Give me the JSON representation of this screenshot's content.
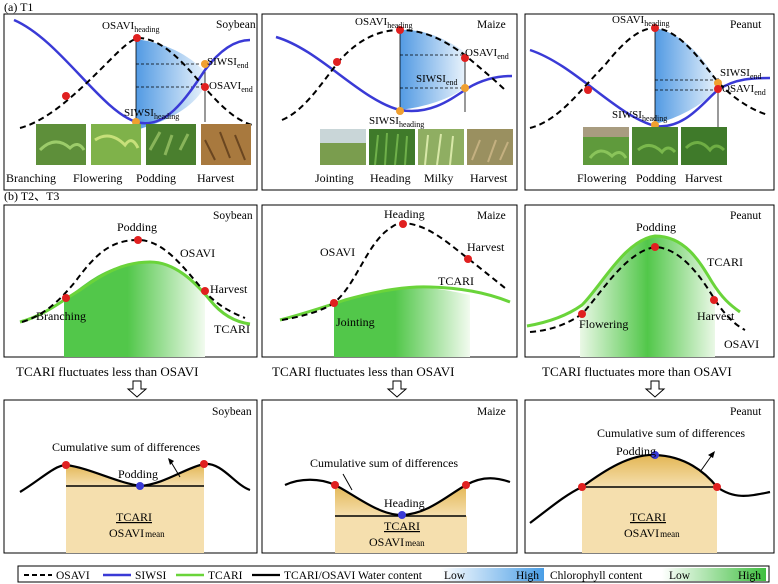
{
  "figure": {
    "section_a": "(a) T1",
    "section_b": "(b) T2、T3"
  },
  "t1": {
    "soybean": {
      "crop": "Soybean",
      "osavi_heading": "OSAVI",
      "osavi_heading_sub": "heading",
      "siwsi_end": "SIWSI",
      "siwsi_end_sub": "end",
      "osavi_end": "OSAVI",
      "osavi_end_sub": "end",
      "siwsi_heading": "SIWSI",
      "siwsi_heading_sub": "heading",
      "stages": [
        "Branching",
        "Flowering",
        "Podding",
        "Harvest"
      ]
    },
    "maize": {
      "crop": "Maize",
      "osavi_heading": "OSAVI",
      "osavi_heading_sub": "heading",
      "osavi_end": "OSAVI",
      "osavi_end_sub": "end",
      "siwsi_end": "SIWSI",
      "siwsi_end_sub": "end",
      "siwsi_heading": "SIWSI",
      "siwsi_heading_sub": "heading",
      "stages": [
        "Jointing",
        "Heading",
        "Milky",
        "Harvest"
      ]
    },
    "peanut": {
      "crop": "Peanut",
      "osavi_heading": "OSAVI",
      "osavi_heading_sub": "heading",
      "siwsi_end": "SIWSI",
      "siwsi_end_sub": "end",
      "osavi_end": "OSAVI",
      "osavi_end_sub": "end",
      "siwsi_heading": "SIWSI",
      "siwsi_heading_sub": "heading",
      "stages": [
        "Flowering",
        "Podding",
        "Harvest"
      ]
    }
  },
  "t2": {
    "soybean": {
      "crop": "Soybean",
      "peak": "Podding",
      "osavi": "OSAVI",
      "harvest": "Harvest",
      "start": "Branching",
      "tcari": "TCARI",
      "caption": "TCARI fluctuates less than OSAVI"
    },
    "maize": {
      "crop": "Maize",
      "peak": "Heading",
      "osavi": "OSAVI",
      "harvest": "Harvest",
      "tcari": "TCARI",
      "start": "Jointing",
      "caption": "TCARI fluctuates less than OSAVI"
    },
    "peanut": {
      "crop": "Peanut",
      "peak": "Podding",
      "tcari": "TCARI",
      "start": "Flowering",
      "harvest": "Harvest",
      "osavi": "OSAVI",
      "caption": "TCARI fluctuates more than OSAVI"
    }
  },
  "t3": {
    "soybean": {
      "crop": "Soybean",
      "cumulative": "Cumulative sum of differences",
      "stage": "Podding",
      "ratio_num": "TCARI",
      "ratio_den": "OSAVI",
      "ratio_den_sub": "mean"
    },
    "maize": {
      "crop": "Maize",
      "cumulative": "Cumulative sum of differences",
      "stage": "Heading",
      "ratio_num": "TCARI",
      "ratio_den": "OSAVI",
      "ratio_den_sub": "mean"
    },
    "peanut": {
      "crop": "Peanut",
      "cumulative": "Cumulative sum of differences",
      "stage": "Podding",
      "ratio_num": "TCARI",
      "ratio_den": "OSAVI",
      "ratio_den_sub": "mean"
    }
  },
  "legend": {
    "osavi": "OSAVI",
    "siwsi": "SIWSI",
    "tcari": "TCARI",
    "ratio": "TCARI/OSAVI",
    "water": "Water content",
    "water_low": "Low",
    "water_high": "High",
    "chlorophyll": "Chlorophyll content",
    "chl_low": "Low",
    "chl_high": "High"
  },
  "colors": {
    "siwsi": "#3a3ad6",
    "tcari": "#6ad43a",
    "point_red": "#e02020",
    "point_orange": "#f0a030",
    "point_blue": "#3a3ad6",
    "water_high": "#4a9ee6",
    "chl_high": "#3fbf3f",
    "fill_tan": "#e8c57c"
  }
}
